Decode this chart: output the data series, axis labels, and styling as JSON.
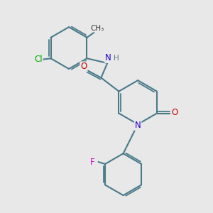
{
  "bg_color": "#e8e8e8",
  "bond_color": "#4a7a8a",
  "bond_width": 1.5,
  "atom_colors": {
    "N": "#2200cc",
    "O": "#cc0000",
    "Cl": "#00aa00",
    "F": "#cc00cc",
    "H": "#557788",
    "C": "#333333"
  },
  "figsize": [
    3.0,
    3.0
  ],
  "dpi": 100
}
